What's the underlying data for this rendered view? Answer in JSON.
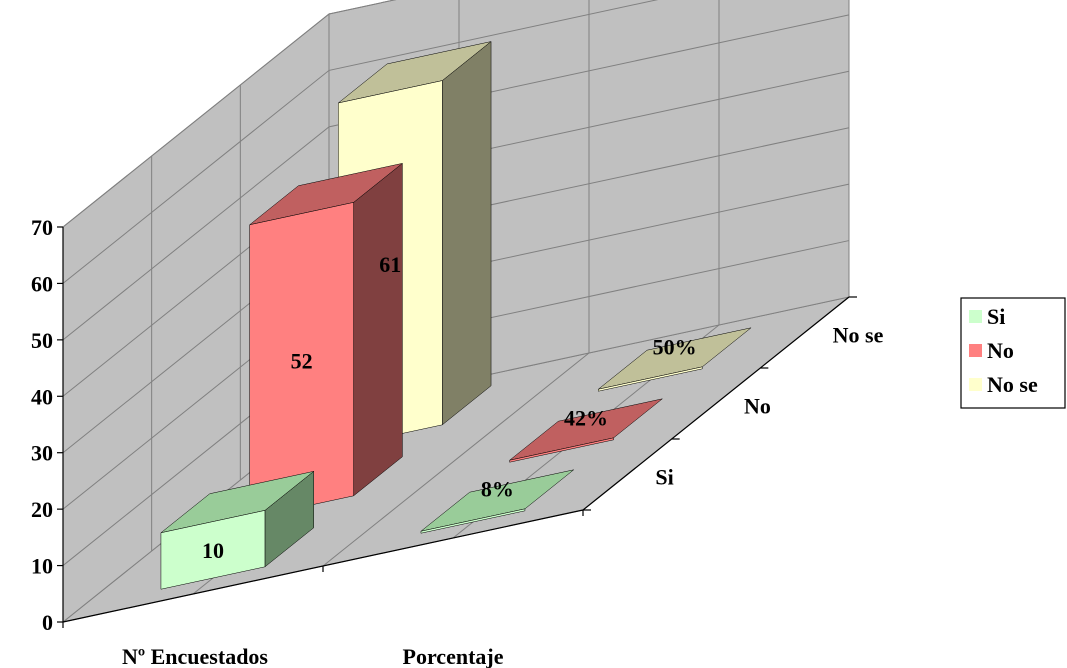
{
  "chart_data": {
    "type": "bar",
    "title": "",
    "xlabel": "",
    "ylabel": "",
    "ylim": [
      0,
      70
    ],
    "yticks": [
      0,
      10,
      20,
      30,
      40,
      50,
      60,
      70
    ],
    "grid": true,
    "legend_position": "right",
    "categories": [
      "Nº Encuestados",
      "Porcentaje"
    ],
    "series": [
      {
        "name": "Si",
        "values": [
          10,
          8
        ],
        "labels": [
          "10",
          "8%"
        ],
        "color": "#CCFFCC",
        "top_color": "#99CC99",
        "side_color": "#668866"
      },
      {
        "name": "No",
        "values": [
          52,
          42
        ],
        "labels": [
          "52",
          "42%"
        ],
        "color": "#FF8080",
        "top_color": "#C06060",
        "side_color": "#804040"
      },
      {
        "name": "No se",
        "values": [
          61,
          50
        ],
        "labels": [
          "61",
          "50%"
        ],
        "color": "#FFFFCC",
        "top_color": "#C0C099",
        "side_color": "#808066"
      }
    ],
    "colors": {
      "wall": "#C0C0C0",
      "floor": "#C0C0C0",
      "grid": "#808080",
      "axis": "#000000"
    }
  }
}
